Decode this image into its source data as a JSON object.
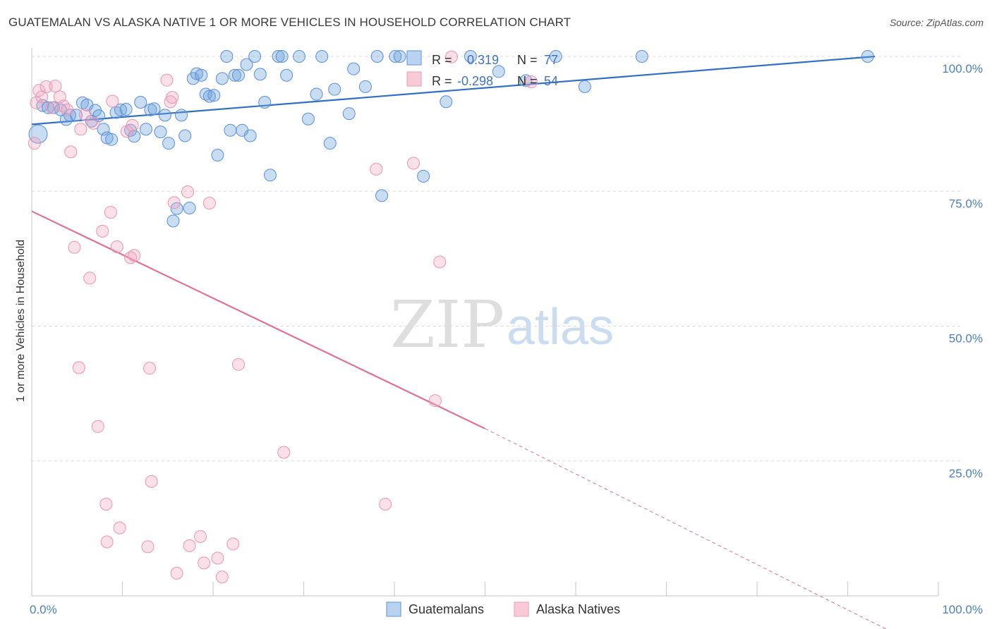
{
  "title": "GUATEMALAN VS ALASKA NATIVE 1 OR MORE VEHICLES IN HOUSEHOLD CORRELATION CHART",
  "source": "Source: ZipAtlas.com",
  "watermark": {
    "zip": "ZIP",
    "atlas": "atlas"
  },
  "colors": {
    "blue": "#6fa3de",
    "blue_line": "#2f6fc9",
    "pink": "#f2a7bf",
    "pink_line": "#e0719a"
  },
  "chart_data": {
    "type": "scatter",
    "xlabel": "",
    "ylabel": "1 or more Vehicles in Household",
    "xlim": [
      0,
      100
    ],
    "ylim": [
      0,
      100
    ],
    "x_tick_labels": [
      {
        "value": 0,
        "label": "0.0%"
      },
      {
        "value": 100,
        "label": "100.0%"
      }
    ],
    "y_tick_labels": [
      {
        "value": 100,
        "label": "100.0%"
      },
      {
        "value": 75,
        "label": "75.0%"
      },
      {
        "value": 50,
        "label": "50.0%"
      },
      {
        "value": 25,
        "label": "25.0%"
      }
    ],
    "legend_position": "bottom",
    "stats": [
      {
        "r_label": "R =",
        "r_value": "0.319",
        "n_label": "N =",
        "n_value": "77"
      },
      {
        "r_label": "R =",
        "r_value": "-0.298",
        "n_label": "N =",
        "n_value": "54"
      }
    ],
    "series": [
      {
        "name": "Guatemalans",
        "color": "#6fa3de",
        "trend": {
          "x": [
            0,
            93
          ],
          "y": [
            87.4,
            100
          ]
        },
        "points": [
          {
            "x": 0.7,
            "y": 85.6,
            "big": true
          },
          {
            "x": 1.2,
            "y": 90.9
          },
          {
            "x": 1.8,
            "y": 90.5
          },
          {
            "x": 2.4,
            "y": 90.5
          },
          {
            "x": 3.2,
            "y": 90.1
          },
          {
            "x": 3.8,
            "y": 88.3
          },
          {
            "x": 4.2,
            "y": 89.1
          },
          {
            "x": 4.9,
            "y": 89.1
          },
          {
            "x": 5.6,
            "y": 91.4
          },
          {
            "x": 6.1,
            "y": 91.0
          },
          {
            "x": 6.6,
            "y": 88.0
          },
          {
            "x": 7.0,
            "y": 90.0
          },
          {
            "x": 7.4,
            "y": 89.0
          },
          {
            "x": 7.9,
            "y": 86.5
          },
          {
            "x": 8.3,
            "y": 84.9
          },
          {
            "x": 8.8,
            "y": 84.6
          },
          {
            "x": 9.3,
            "y": 89.6
          },
          {
            "x": 9.8,
            "y": 90.1
          },
          {
            "x": 10.4,
            "y": 90.2
          },
          {
            "x": 10.9,
            "y": 86.3
          },
          {
            "x": 11.3,
            "y": 85.2
          },
          {
            "x": 12.0,
            "y": 91.5
          },
          {
            "x": 12.6,
            "y": 86.5
          },
          {
            "x": 13.1,
            "y": 90.1
          },
          {
            "x": 13.5,
            "y": 90.3
          },
          {
            "x": 14.2,
            "y": 86.0
          },
          {
            "x": 14.7,
            "y": 89.1
          },
          {
            "x": 15.1,
            "y": 83.9
          },
          {
            "x": 15.6,
            "y": 69.5
          },
          {
            "x": 16.0,
            "y": 71.8
          },
          {
            "x": 16.5,
            "y": 89.1
          },
          {
            "x": 16.9,
            "y": 85.3
          },
          {
            "x": 17.4,
            "y": 71.9
          },
          {
            "x": 17.8,
            "y": 95.9
          },
          {
            "x": 18.2,
            "y": 96.8
          },
          {
            "x": 18.7,
            "y": 96.5
          },
          {
            "x": 19.2,
            "y": 93.0
          },
          {
            "x": 19.6,
            "y": 92.6
          },
          {
            "x": 20.1,
            "y": 92.8
          },
          {
            "x": 20.5,
            "y": 81.7
          },
          {
            "x": 21.0,
            "y": 95.9
          },
          {
            "x": 21.5,
            "y": 100.0
          },
          {
            "x": 21.9,
            "y": 86.3
          },
          {
            "x": 22.4,
            "y": 96.5
          },
          {
            "x": 22.8,
            "y": 96.5
          },
          {
            "x": 23.2,
            "y": 86.3
          },
          {
            "x": 23.7,
            "y": 98.5
          },
          {
            "x": 24.1,
            "y": 85.3
          },
          {
            "x": 24.6,
            "y": 100.0
          },
          {
            "x": 25.2,
            "y": 96.7
          },
          {
            "x": 25.7,
            "y": 91.5
          },
          {
            "x": 26.3,
            "y": 78.0
          },
          {
            "x": 27.2,
            "y": 100.0
          },
          {
            "x": 27.6,
            "y": 100.0
          },
          {
            "x": 28.1,
            "y": 96.5
          },
          {
            "x": 29.5,
            "y": 100.0
          },
          {
            "x": 30.5,
            "y": 88.4
          },
          {
            "x": 31.4,
            "y": 93.0
          },
          {
            "x": 32.0,
            "y": 100.0
          },
          {
            "x": 32.9,
            "y": 83.9
          },
          {
            "x": 33.4,
            "y": 93.9
          },
          {
            "x": 35.0,
            "y": 89.4
          },
          {
            "x": 35.5,
            "y": 97.7
          },
          {
            "x": 36.8,
            "y": 94.4
          },
          {
            "x": 38.1,
            "y": 100.0
          },
          {
            "x": 38.6,
            "y": 74.2
          },
          {
            "x": 40.1,
            "y": 100.0
          },
          {
            "x": 40.6,
            "y": 100.0
          },
          {
            "x": 43.2,
            "y": 77.8
          },
          {
            "x": 45.7,
            "y": 91.6
          },
          {
            "x": 48.4,
            "y": 100.0
          },
          {
            "x": 51.5,
            "y": 97.2
          },
          {
            "x": 54.5,
            "y": 95.5
          },
          {
            "x": 57.8,
            "y": 100.0
          },
          {
            "x": 61.0,
            "y": 94.4
          },
          {
            "x": 67.3,
            "y": 100.0
          },
          {
            "x": 92.2,
            "y": 100.0
          }
        ]
      },
      {
        "name": "Alaska Natives",
        "color": "#f2a7bf",
        "trend": {
          "x": [
            0,
            50
          ],
          "y": [
            71.3,
            31.0
          ],
          "dash_to": {
            "x": 100,
            "y": -11.0
          }
        },
        "points": [
          {
            "x": 0.3,
            "y": 83.9
          },
          {
            "x": 0.5,
            "y": 91.4
          },
          {
            "x": 0.8,
            "y": 93.7
          },
          {
            "x": 1.1,
            "y": 92.5
          },
          {
            "x": 1.6,
            "y": 94.4
          },
          {
            "x": 2.2,
            "y": 90.5
          },
          {
            "x": 2.6,
            "y": 94.5
          },
          {
            "x": 3.1,
            "y": 92.5
          },
          {
            "x": 3.5,
            "y": 90.8
          },
          {
            "x": 3.9,
            "y": 90.1
          },
          {
            "x": 4.3,
            "y": 82.3
          },
          {
            "x": 4.7,
            "y": 64.6
          },
          {
            "x": 5.2,
            "y": 42.3
          },
          {
            "x": 5.4,
            "y": 86.5
          },
          {
            "x": 5.9,
            "y": 89.2
          },
          {
            "x": 6.4,
            "y": 58.9
          },
          {
            "x": 6.8,
            "y": 87.6
          },
          {
            "x": 7.3,
            "y": 31.4
          },
          {
            "x": 7.8,
            "y": 67.6
          },
          {
            "x": 8.2,
            "y": 17.0
          },
          {
            "x": 8.3,
            "y": 10.0
          },
          {
            "x": 8.7,
            "y": 71.1
          },
          {
            "x": 8.9,
            "y": 91.7
          },
          {
            "x": 9.4,
            "y": 64.7
          },
          {
            "x": 9.7,
            "y": 12.6
          },
          {
            "x": 10.5,
            "y": 86.1
          },
          {
            "x": 10.9,
            "y": 62.7
          },
          {
            "x": 11.1,
            "y": 87.2
          },
          {
            "x": 11.3,
            "y": 63.1
          },
          {
            "x": 12.8,
            "y": 9.1
          },
          {
            "x": 13.0,
            "y": 42.2
          },
          {
            "x": 13.2,
            "y": 21.2
          },
          {
            "x": 14.9,
            "y": 95.6
          },
          {
            "x": 15.3,
            "y": 91.6
          },
          {
            "x": 15.5,
            "y": 92.4
          },
          {
            "x": 15.7,
            "y": 72.9
          },
          {
            "x": 16.0,
            "y": 4.2
          },
          {
            "x": 17.2,
            "y": 74.9
          },
          {
            "x": 17.4,
            "y": 9.3
          },
          {
            "x": 18.6,
            "y": 11.0
          },
          {
            "x": 19.0,
            "y": 6.1
          },
          {
            "x": 19.6,
            "y": 72.8
          },
          {
            "x": 20.5,
            "y": 7.0
          },
          {
            "x": 21.0,
            "y": 3.5
          },
          {
            "x": 22.2,
            "y": 9.6
          },
          {
            "x": 22.8,
            "y": 42.9
          },
          {
            "x": 27.8,
            "y": 26.6
          },
          {
            "x": 38.0,
            "y": 79.1
          },
          {
            "x": 39.0,
            "y": 17.0
          },
          {
            "x": 42.1,
            "y": 80.2
          },
          {
            "x": 44.5,
            "y": 36.2
          },
          {
            "x": 45.0,
            "y": 61.9
          },
          {
            "x": 46.3,
            "y": 99.9
          },
          {
            "x": 55.1,
            "y": 95.3
          }
        ]
      }
    ]
  }
}
